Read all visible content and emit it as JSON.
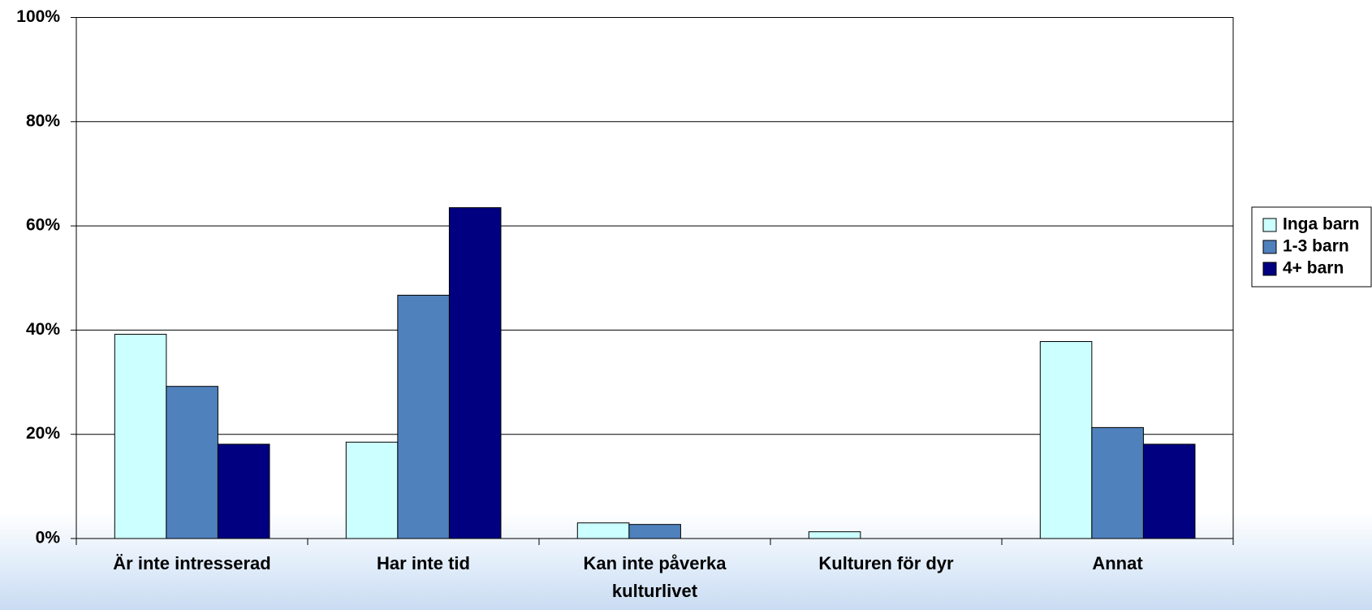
{
  "chart_data": {
    "type": "bar",
    "categories": [
      "Är inte intresserad",
      "Har inte tid",
      "Kan inte påverka kulturlivet",
      "Kulturen för dyr",
      "Annat"
    ],
    "series": [
      {
        "name": "Inga barn",
        "color": "#ccffff",
        "values": [
          39.2,
          18.5,
          3.0,
          1.3,
          37.8
        ]
      },
      {
        "name": "1-3 barn",
        "color": "#4f81bd",
        "values": [
          29.2,
          46.7,
          2.7,
          0,
          21.3
        ]
      },
      {
        "name": "4+ barn",
        "color": "#000080",
        "values": [
          18.1,
          63.5,
          0,
          0,
          18.1
        ]
      }
    ],
    "ylim": [
      0,
      100
    ],
    "yticks": [
      {
        "value": 0,
        "label": "0%"
      },
      {
        "value": 20,
        "label": "20%"
      },
      {
        "value": 40,
        "label": "40%"
      },
      {
        "value": 60,
        "label": "60%"
      },
      {
        "value": 80,
        "label": "80%"
      },
      {
        "value": 100,
        "label": "100%"
      }
    ],
    "grid": true,
    "legend": "right"
  }
}
